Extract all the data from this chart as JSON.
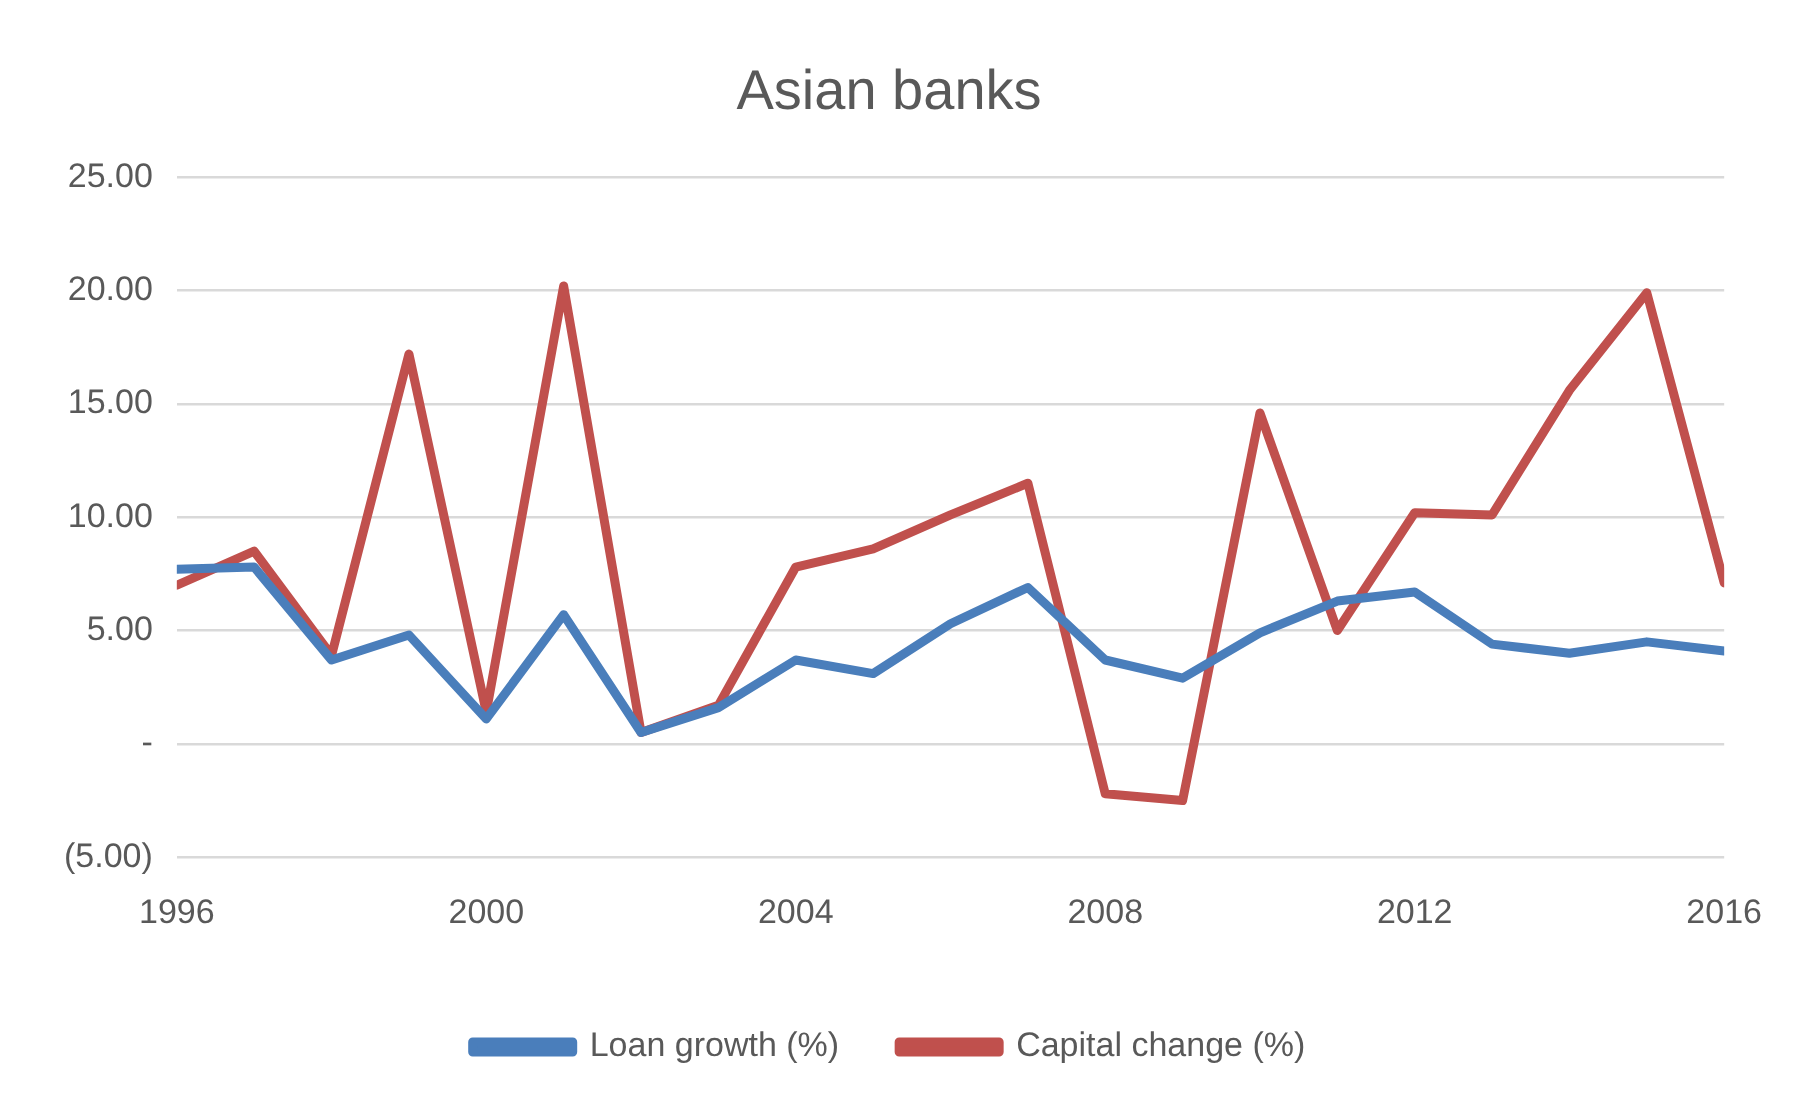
{
  "chart_data": {
    "type": "line",
    "title": "Asian banks",
    "x": [
      1996,
      1997,
      1998,
      1999,
      2000,
      2001,
      2002,
      2003,
      2004,
      2005,
      2006,
      2007,
      2008,
      2009,
      2010,
      2011,
      2012,
      2013,
      2014,
      2015,
      2016
    ],
    "series": [
      {
        "name": "Loan growth (%)",
        "color": "#4a7ebb",
        "values": [
          7.7,
          7.8,
          3.7,
          4.8,
          1.1,
          5.7,
          0.5,
          1.6,
          3.7,
          3.1,
          5.3,
          6.9,
          3.7,
          2.9,
          4.9,
          6.3,
          6.7,
          4.4,
          4.0,
          4.5,
          4.1
        ]
      },
      {
        "name": "Capital change (%)",
        "color": "#c0504d",
        "values": [
          7.0,
          8.5,
          3.9,
          17.2,
          1.4,
          20.2,
          0.5,
          1.7,
          7.8,
          8.6,
          10.1,
          11.5,
          -2.2,
          -2.5,
          14.6,
          5.0,
          10.2,
          10.1,
          15.6,
          19.9,
          7.1
        ]
      }
    ],
    "xlim": [
      1996,
      2016
    ],
    "xticks": [
      1996,
      2000,
      2004,
      2008,
      2012,
      2016
    ],
    "ylim": [
      -5,
      25
    ],
    "yticks": [
      {
        "value": -5,
        "label": "(5.00)"
      },
      {
        "value": 0,
        "label": "-"
      },
      {
        "value": 5,
        "label": "5.00"
      },
      {
        "value": 10,
        "label": "10.00"
      },
      {
        "value": 15,
        "label": "15.00"
      },
      {
        "value": 20,
        "label": "20.00"
      },
      {
        "value": 25,
        "label": "25.00"
      }
    ],
    "grid": "y",
    "legend": "bottom",
    "marker": "none",
    "line_style": "solid"
  }
}
